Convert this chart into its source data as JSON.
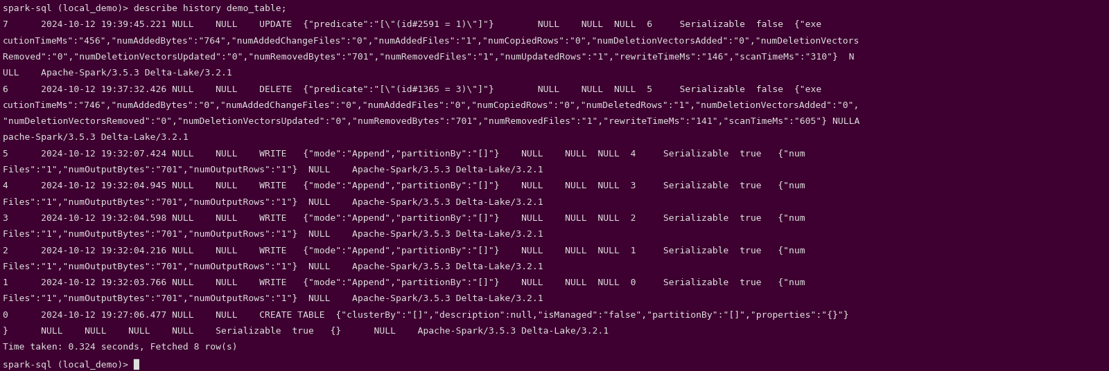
{
  "background_color": "#3d0030",
  "text_color": "#e0e0e0",
  "font_family": "monospace",
  "font_size": 9.4,
  "fig_width": 16.0,
  "fig_height": 5.36,
  "dpi": 100,
  "lines": [
    "spark-sql (local_demo)> describe history demo_table;",
    "7      2024-10-12 19:39:45.221 NULL    NULL    UPDATE  {\"predicate\":\"[\\\"(id#2591 = 1)\\\"]\"}        NULL    NULL  NULL  6     Serializable  false  {\"exe",
    "cutionTimeMs\":\"456\",\"numAddedBytes\":\"764\",\"numAddedChangeFiles\":\"0\",\"numAddedFiles\":\"1\",\"numCopiedRows\":\"0\",\"numDeletionVectorsAdded\":\"0\",\"numDeletionVectors",
    "Removed\":\"0\",\"numDeletionVectorsUpdated\":\"0\",\"numRemovedBytes\":\"701\",\"numRemovedFiles\":\"1\",\"numUpdatedRows\":\"1\",\"rewriteTimeMs\":\"146\",\"scanTimeMs\":\"310\"}  N",
    "ULL    Apache-Spark/3.5.3 Delta-Lake/3.2.1",
    "6      2024-10-12 19:37:32.426 NULL    NULL    DELETE  {\"predicate\":\"[\\\"(id#1365 = 3)\\\"]\"}        NULL    NULL  NULL  5     Serializable  false  {\"exe",
    "cutionTimeMs\":\"746\",\"numAddedBytes\":\"0\",\"numAddedChangeFiles\":\"0\",\"numAddedFiles\":\"0\",\"numCopiedRows\":\"0\",\"numDeletedRows\":\"1\",\"numDeletionVectorsAdded\":\"0\",",
    "\"numDeletionVectorsRemoved\":\"0\",\"numDeletionVectorsUpdated\":\"0\",\"numRemovedBytes\":\"701\",\"numRemovedFiles\":\"1\",\"rewriteTimeMs\":\"141\",\"scanTimeMs\":\"605\"} NULLA",
    "pache-Spark/3.5.3 Delta-Lake/3.2.1",
    "5      2024-10-12 19:32:07.424 NULL    NULL    WRITE   {\"mode\":\"Append\",\"partitionBy\":\"[]\"}    NULL    NULL  NULL  4     Serializable  true   {\"num",
    "Files\":\"1\",\"numOutputBytes\":\"701\",\"numOutputRows\":\"1\"}  NULL    Apache-Spark/3.5.3 Delta-Lake/3.2.1",
    "4      2024-10-12 19:32:04.945 NULL    NULL    WRITE   {\"mode\":\"Append\",\"partitionBy\":\"[]\"}    NULL    NULL  NULL  3     Serializable  true   {\"num",
    "Files\":\"1\",\"numOutputBytes\":\"701\",\"numOutputRows\":\"1\"}  NULL    Apache-Spark/3.5.3 Delta-Lake/3.2.1",
    "3      2024-10-12 19:32:04.598 NULL    NULL    WRITE   {\"mode\":\"Append\",\"partitionBy\":\"[]\"}    NULL    NULL  NULL  2     Serializable  true   {\"num",
    "Files\":\"1\",\"numOutputBytes\":\"701\",\"numOutputRows\":\"1\"}  NULL    Apache-Spark/3.5.3 Delta-Lake/3.2.1",
    "2      2024-10-12 19:32:04.216 NULL    NULL    WRITE   {\"mode\":\"Append\",\"partitionBy\":\"[]\"}    NULL    NULL  NULL  1     Serializable  true   {\"num",
    "Files\":\"1\",\"numOutputBytes\":\"701\",\"numOutputRows\":\"1\"}  NULL    Apache-Spark/3.5.3 Delta-Lake/3.2.1",
    "1      2024-10-12 19:32:03.766 NULL    NULL    WRITE   {\"mode\":\"Append\",\"partitionBy\":\"[]\"}    NULL    NULL  NULL  0     Serializable  true   {\"num",
    "Files\":\"1\",\"numOutputBytes\":\"701\",\"numOutputRows\":\"1\"}  NULL    Apache-Spark/3.5.3 Delta-Lake/3.2.1",
    "0      2024-10-12 19:27:06.477 NULL    NULL    CREATE TABLE  {\"clusterBy\":\"[]\",\"description\":null,\"isManaged\":\"false\",\"partitionBy\":\"[]\",\"properties\":\"{}\"}",
    "}      NULL    NULL    NULL    NULL    Serializable  true   {}      NULL    Apache-Spark/3.5.3 Delta-Lake/3.2.1",
    "Time taken: 0.324 seconds, Fetched 8 row(s)",
    "spark-sql (local_demo)> █"
  ]
}
